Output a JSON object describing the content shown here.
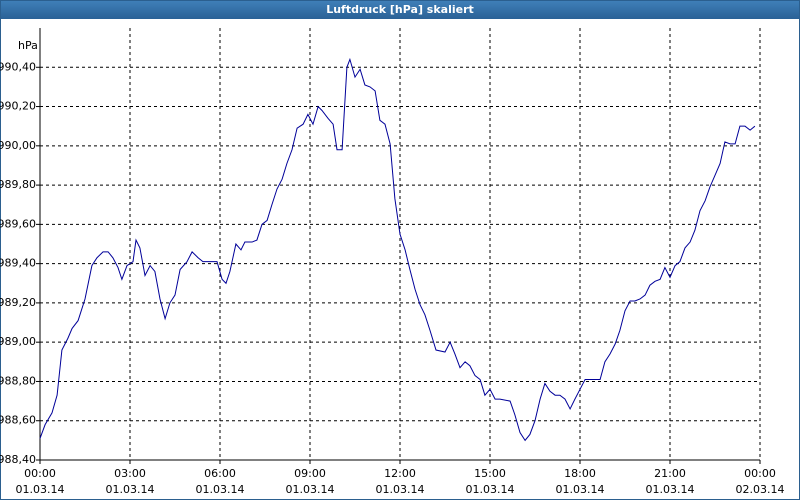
{
  "chart_data": {
    "type": "line",
    "title": "Luftdruck [hPa] skaliert",
    "y_label": "hPa",
    "xlim": [
      0,
      24
    ],
    "xticks": [
      {
        "value": 0,
        "label": "00:00",
        "date": "01.03.14"
      },
      {
        "value": 3,
        "label": "03:00",
        "date": "01.03.14"
      },
      {
        "value": 6,
        "label": "06:00",
        "date": "01.03.14"
      },
      {
        "value": 9,
        "label": "09:00",
        "date": "01.03.14"
      },
      {
        "value": 12,
        "label": "12:00",
        "date": "01.03.14"
      },
      {
        "value": 15,
        "label": "15:00",
        "date": "01.03.14"
      },
      {
        "value": 18,
        "label": "18:00",
        "date": "01.03.14"
      },
      {
        "value": 21,
        "label": "21:00",
        "date": "01.03.14"
      },
      {
        "value": 24,
        "label": "00:00",
        "date": "02.03.14"
      }
    ],
    "ylim": [
      988.4,
      990.6
    ],
    "yticks": [
      {
        "value": 988.4,
        "label": "988,40"
      },
      {
        "value": 988.6,
        "label": "988,60"
      },
      {
        "value": 988.8,
        "label": "988,80"
      },
      {
        "value": 989.0,
        "label": "989,00"
      },
      {
        "value": 989.2,
        "label": "989,20"
      },
      {
        "value": 989.4,
        "label": "989,40"
      },
      {
        "value": 989.6,
        "label": "989,60"
      },
      {
        "value": 989.8,
        "label": "989,80"
      },
      {
        "value": 990.0,
        "label": "990,00"
      },
      {
        "value": 990.2,
        "label": "990,20"
      },
      {
        "value": 990.4,
        "label": "990,40"
      }
    ],
    "grid": true,
    "series": [
      {
        "color": "#000099",
        "x": [
          0,
          0.17,
          0.4,
          0.57,
          0.73,
          0.93,
          1.07,
          1.27,
          1.5,
          1.73,
          1.9,
          2.1,
          2.27,
          2.43,
          2.6,
          2.73,
          2.9,
          3.1,
          3.2,
          3.33,
          3.5,
          3.67,
          3.83,
          4,
          4.17,
          4.33,
          4.5,
          4.67,
          4.9,
          5.07,
          5.27,
          5.43,
          5.67,
          5.9,
          6.07,
          6.2,
          6.33,
          6.53,
          6.7,
          6.83,
          7.07,
          7.23,
          7.4,
          7.57,
          7.73,
          7.9,
          8.07,
          8.23,
          8.4,
          8.57,
          8.77,
          8.93,
          9.1,
          9.27,
          9.4,
          9.6,
          9.77,
          9.9,
          10.07,
          10.23,
          10.33,
          10.5,
          10.67,
          10.83,
          11,
          11.17,
          11.33,
          11.5,
          11.67,
          11.83,
          12,
          12.17,
          12.33,
          12.5,
          12.67,
          12.83,
          13,
          13.2,
          13.5,
          13.67,
          13.83,
          14,
          14.17,
          14.33,
          14.5,
          14.67,
          14.83,
          15,
          15.17,
          15.33,
          15.67,
          15.83,
          16,
          16.17,
          16.33,
          16.5,
          16.67,
          16.83,
          17,
          17.17,
          17.33,
          17.5,
          17.67,
          17.83,
          18,
          18.17,
          18.67,
          18.83,
          19,
          19.17,
          19.33,
          19.5,
          19.67,
          19.83,
          20,
          20.17,
          20.33,
          20.5,
          20.67,
          20.83,
          21,
          21.17,
          21.33,
          21.5,
          21.67,
          21.83,
          22,
          22.17,
          22.33,
          22.5,
          22.67,
          22.83,
          23,
          23.17,
          23.33,
          23.5,
          23.67,
          23.83
        ],
        "values": [
          988.51,
          988.58,
          988.64,
          988.73,
          988.96,
          989.02,
          989.07,
          989.11,
          989.22,
          989.39,
          989.43,
          989.46,
          989.46,
          989.43,
          989.38,
          989.32,
          989.39,
          989.41,
          989.52,
          989.48,
          989.34,
          989.39,
          989.36,
          989.22,
          989.12,
          989.2,
          989.24,
          989.37,
          989.41,
          989.46,
          989.43,
          989.41,
          989.41,
          989.41,
          989.32,
          989.3,
          989.36,
          989.5,
          989.47,
          989.51,
          989.51,
          989.52,
          989.6,
          989.62,
          989.7,
          989.78,
          989.83,
          989.91,
          989.98,
          990.09,
          990.11,
          990.16,
          990.11,
          990.2,
          990.18,
          990.14,
          990.11,
          989.98,
          989.98,
          990.4,
          990.44,
          990.35,
          990.39,
          990.31,
          990.3,
          990.28,
          990.13,
          990.11,
          990.01,
          989.73,
          989.55,
          989.47,
          989.37,
          989.27,
          989.19,
          989.14,
          989.06,
          988.96,
          988.95,
          989.0,
          988.94,
          988.87,
          988.9,
          988.88,
          988.83,
          988.81,
          988.73,
          988.76,
          988.71,
          988.71,
          988.7,
          988.63,
          988.54,
          988.5,
          988.53,
          988.6,
          988.71,
          988.79,
          988.75,
          988.73,
          988.73,
          988.71,
          988.66,
          988.71,
          988.76,
          988.81,
          988.81,
          988.9,
          988.94,
          988.99,
          989.06,
          989.16,
          989.21,
          989.21,
          989.22,
          989.24,
          989.29,
          989.31,
          989.32,
          989.38,
          989.33,
          989.39,
          989.41,
          989.48,
          989.51,
          989.57,
          989.67,
          989.72,
          989.79,
          989.85,
          989.91,
          990.02,
          990.01,
          990.01,
          990.1,
          990.1,
          990.08,
          990.1
        ]
      }
    ]
  }
}
